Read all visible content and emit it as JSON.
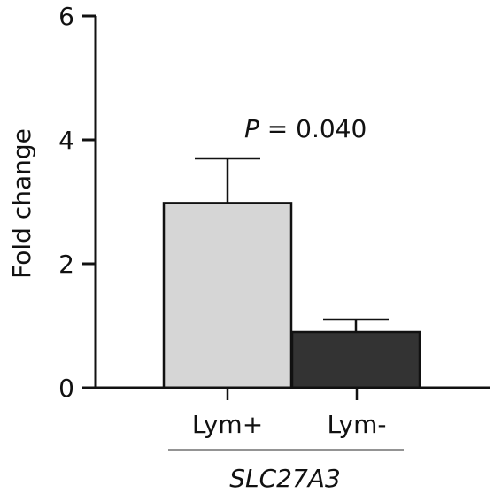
{
  "chart_data": {
    "type": "bar",
    "categories": [
      "Lym+",
      "Lym-"
    ],
    "values": [
      2.98,
      0.9
    ],
    "errors": [
      0.72,
      0.2
    ],
    "bar_colors": [
      "#d6d6d6",
      "#333333"
    ],
    "ylabel": "Fold change",
    "xlabel": "SLC27A3",
    "ylim": [
      0,
      6
    ],
    "yticks": [
      "0",
      "2",
      "4",
      "6"
    ],
    "annotation": {
      "p_symbol": "P",
      "p_text": " = 0.040"
    },
    "grid": false,
    "legend": "none"
  }
}
